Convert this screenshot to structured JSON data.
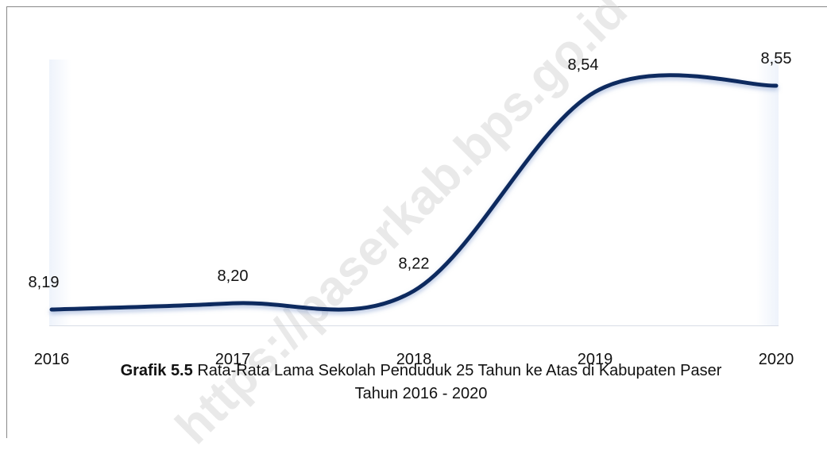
{
  "chart_data": {
    "type": "line",
    "categories": [
      "2016",
      "2017",
      "2018",
      "2019",
      "2020"
    ],
    "values": [
      8.19,
      8.2,
      8.22,
      8.54,
      8.55
    ],
    "value_labels": [
      "8,19",
      "8,20",
      "8,22",
      "8,54",
      "8,55"
    ],
    "color": "#0f2a5e",
    "smooth": true,
    "caption_label": "Grafik 5.5",
    "caption_text": "Rata-Rata Lama Sekolah Penduduk 25 Tahun ke Atas di Kabupaten Paser",
    "caption_line2": "Tahun 2016 - 2020",
    "watermark": "https://paserkab.bps.go.id"
  }
}
